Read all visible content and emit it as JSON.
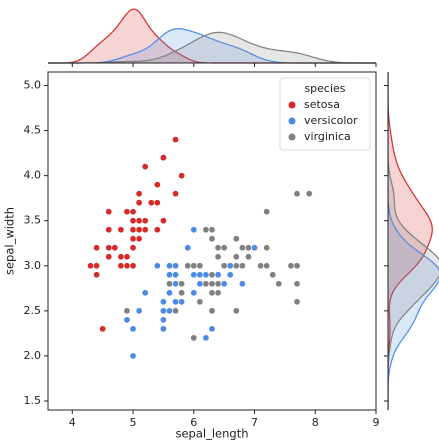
{
  "chart_data": {
    "type": "scatter",
    "xlabel": "sepal_length",
    "ylabel": "sepal_width",
    "xlim": [
      3.6,
      9.0
    ],
    "ylim": [
      1.4,
      5.15
    ],
    "xticks": [
      4,
      5,
      6,
      7,
      8,
      9
    ],
    "yticks": [
      1.5,
      {
        "value": 2,
        "label": "2.0"
      },
      2.5,
      {
        "value": 3,
        "label": "3.0"
      },
      3.5,
      {
        "value": 4,
        "label": "4.0"
      },
      4.5,
      {
        "value": 5,
        "label": "5.0"
      }
    ],
    "legend_title": "species",
    "legend_loc": "upper right",
    "marginal": "kde",
    "series": [
      {
        "name": "setosa",
        "color": "#d62a28",
        "x": [
          5.1,
          4.9,
          4.7,
          4.6,
          5.0,
          5.4,
          4.6,
          5.0,
          4.4,
          4.9,
          5.4,
          4.8,
          4.8,
          4.3,
          5.8,
          5.7,
          5.4,
          5.1,
          5.7,
          5.1,
          5.4,
          5.1,
          4.6,
          5.1,
          4.8,
          5.0,
          5.0,
          5.2,
          5.2,
          4.7,
          4.8,
          5.4,
          5.2,
          5.5,
          4.9,
          5.0,
          5.5,
          4.9,
          4.4,
          5.1,
          5.0,
          4.5,
          4.4,
          5.0,
          5.1,
          4.8,
          5.1,
          4.6,
          5.3,
          5.0
        ],
        "values": [
          3.5,
          3.0,
          3.2,
          3.1,
          3.6,
          3.9,
          3.4,
          3.4,
          2.9,
          3.1,
          3.7,
          3.4,
          3.0,
          3.0,
          4.0,
          4.4,
          3.9,
          3.5,
          3.8,
          3.8,
          3.4,
          3.7,
          3.6,
          3.3,
          3.4,
          3.0,
          3.4,
          3.5,
          3.4,
          3.2,
          3.1,
          3.4,
          4.1,
          4.2,
          3.1,
          3.2,
          3.5,
          3.6,
          3.0,
          3.4,
          3.5,
          2.3,
          3.2,
          3.5,
          3.8,
          3.0,
          3.8,
          3.2,
          3.7,
          3.3
        ]
      },
      {
        "name": "versicolor",
        "color": "#4b8be8",
        "x": [
          7.0,
          6.4,
          6.9,
          5.5,
          6.5,
          5.7,
          6.3,
          4.9,
          6.6,
          5.2,
          5.0,
          5.9,
          6.0,
          6.1,
          5.6,
          6.7,
          5.6,
          5.8,
          6.2,
          5.6,
          5.9,
          6.1,
          6.3,
          6.1,
          6.4,
          6.6,
          6.8,
          6.7,
          6.0,
          5.7,
          5.5,
          5.5,
          5.8,
          6.0,
          5.4,
          6.0,
          6.7,
          6.3,
          5.6,
          5.5,
          5.5,
          6.1,
          5.8,
          5.0,
          5.6,
          5.7,
          5.7,
          6.2,
          5.1,
          5.7
        ],
        "values": [
          3.2,
          3.2,
          3.1,
          2.3,
          2.8,
          2.8,
          3.3,
          2.4,
          2.9,
          2.7,
          2.0,
          3.0,
          2.2,
          2.9,
          2.9,
          3.1,
          3.0,
          2.7,
          2.2,
          2.5,
          3.2,
          2.8,
          2.5,
          2.8,
          2.9,
          3.0,
          2.8,
          3.0,
          2.9,
          2.6,
          2.4,
          2.4,
          2.7,
          2.7,
          3.0,
          3.4,
          3.1,
          2.3,
          3.0,
          2.5,
          2.6,
          3.0,
          2.6,
          2.3,
          2.7,
          3.0,
          2.9,
          2.9,
          2.5,
          2.8
        ]
      },
      {
        "name": "virginica",
        "color": "#808080",
        "x": [
          6.3,
          5.8,
          7.1,
          6.3,
          6.5,
          7.6,
          4.9,
          7.3,
          6.7,
          7.2,
          6.5,
          6.4,
          6.8,
          5.7,
          5.8,
          6.4,
          6.5,
          7.7,
          7.7,
          6.0,
          6.9,
          5.6,
          7.7,
          6.3,
          6.7,
          7.2,
          6.2,
          6.1,
          6.4,
          7.2,
          7.4,
          7.9,
          6.4,
          6.3,
          6.1,
          7.7,
          6.3,
          6.4,
          6.0,
          6.9,
          6.7,
          6.9,
          5.8,
          6.8,
          6.7,
          6.7,
          6.3,
          6.5,
          6.2,
          5.9
        ],
        "values": [
          3.3,
          2.7,
          3.0,
          2.9,
          3.0,
          3.0,
          2.5,
          2.9,
          2.5,
          3.6,
          3.2,
          2.7,
          3.0,
          2.5,
          2.8,
          3.2,
          3.0,
          3.8,
          2.6,
          2.2,
          3.2,
          2.8,
          2.8,
          2.7,
          3.3,
          3.2,
          2.8,
          3.0,
          2.8,
          3.0,
          2.8,
          3.8,
          2.8,
          2.8,
          2.6,
          3.0,
          3.4,
          3.1,
          3.0,
          3.1,
          3.1,
          3.1,
          2.7,
          3.2,
          3.3,
          3.0,
          2.5,
          3.0,
          3.4,
          3.0
        ]
      }
    ]
  }
}
